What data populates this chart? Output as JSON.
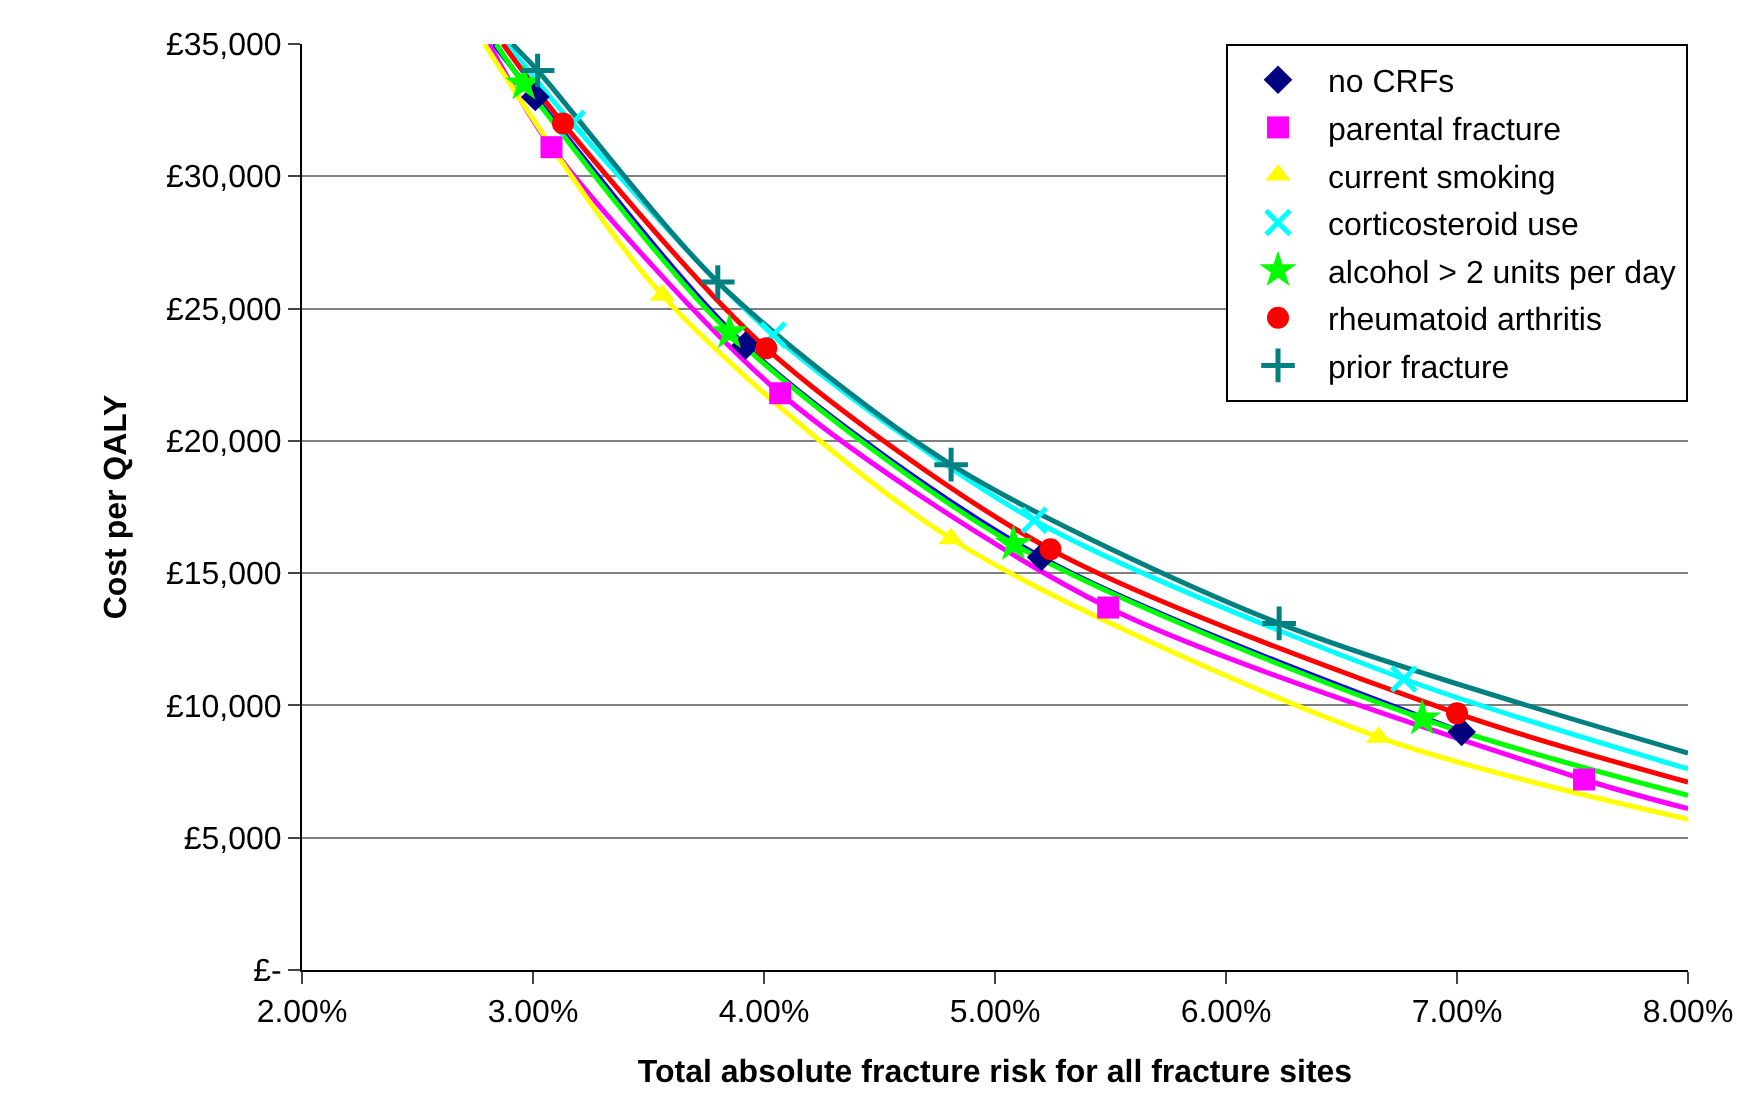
{
  "chart_data": {
    "type": "scatter",
    "xlabel": "Total absolute fracture risk for all fracture sites",
    "ylabel": "Cost per QALY",
    "xlim": [
      2,
      8
    ],
    "xticks": [
      {
        "value": 2,
        "label": "2.00%"
      },
      {
        "value": 3,
        "label": "3.00%"
      },
      {
        "value": 4,
        "label": "4.00%"
      },
      {
        "value": 5,
        "label": "5.00%"
      },
      {
        "value": 6,
        "label": "6.00%"
      },
      {
        "value": 7,
        "label": "7.00%"
      },
      {
        "value": 8,
        "label": "8.00%"
      }
    ],
    "ylim": [
      0,
      35000
    ],
    "yticks": [
      {
        "value": 0,
        "label": "£-"
      },
      {
        "value": 5000,
        "label": "£5,000"
      },
      {
        "value": 10000,
        "label": "£10,000"
      },
      {
        "value": 15000,
        "label": "£15,000"
      },
      {
        "value": 20000,
        "label": "£20,000"
      },
      {
        "value": 25000,
        "label": "£25,000"
      },
      {
        "value": 30000,
        "label": "£30,000"
      },
      {
        "value": 35000,
        "label": "£35,000"
      }
    ],
    "grid": "y",
    "legend": "top right",
    "series": [
      {
        "type": "line",
        "marker": "none",
        "color": "#0000ff",
        "x": [
          2.83,
          3.01,
          3.92,
          5.2,
          7.02
        ],
        "values": [
          35000,
          33000,
          23600,
          15600,
          9000
        ]
      },
      {
        "type": "line",
        "marker": "none",
        "color": "#ff00ff",
        "x": [
          2.81,
          3.08,
          4.07,
          5.49,
          7.55,
          8.0
        ],
        "values": [
          35000,
          31100,
          21800,
          13700,
          7200,
          6100
        ]
      },
      {
        "type": "line",
        "marker": "none",
        "color": "#ffff00",
        "x": [
          2.79,
          3.56,
          4.81,
          6.66,
          8.0
        ],
        "values": [
          35000,
          25500,
          16300,
          8800,
          5700
        ]
      },
      {
        "type": "line",
        "marker": "none",
        "color": "#00ffff",
        "x": [
          2.89,
          3.17,
          4.04,
          5.17,
          6.77,
          8.0
        ],
        "values": [
          35000,
          32000,
          24000,
          17000,
          11000,
          7600
        ]
      },
      {
        "type": "line",
        "marker": "none",
        "color": "#00ff00",
        "x": [
          2.84,
          2.96,
          3.85,
          5.08,
          6.85,
          8.0
        ],
        "values": [
          35000,
          33500,
          24100,
          16100,
          9500,
          6600
        ]
      },
      {
        "type": "line",
        "marker": "none",
        "color": "#ff0000",
        "x": [
          2.87,
          3.13,
          4.01,
          5.24,
          7.0,
          8.0
        ],
        "values": [
          35000,
          32000,
          23500,
          15900,
          9700,
          7100
        ]
      },
      {
        "type": "line",
        "marker": "none",
        "color": "#008080",
        "x": [
          2.91,
          3.02,
          3.8,
          4.81,
          6.23,
          8.0
        ],
        "values": [
          35000,
          34000,
          26000,
          19100,
          13100,
          8200
        ]
      },
      {
        "name": "no CRFs",
        "marker": "diamond",
        "color": "#000080",
        "x": [
          3.01,
          3.92,
          5.2,
          7.02
        ],
        "values": [
          33000,
          23600,
          15600,
          9000
        ]
      },
      {
        "name": "parental fracture",
        "marker": "square",
        "color": "#ff00ff",
        "x": [
          3.08,
          4.07,
          5.49,
          7.55
        ],
        "values": [
          31100,
          21800,
          13700,
          7200
        ]
      },
      {
        "name": "current smoking",
        "marker": "triangle",
        "color": "#ffff00",
        "x": [
          3.56,
          4.81,
          6.66
        ],
        "values": [
          25500,
          16300,
          8800
        ]
      },
      {
        "name": "corticosteroid use",
        "marker": "cross",
        "color": "#00ffff",
        "x": [
          3.17,
          4.04,
          5.17,
          6.77
        ],
        "values": [
          32000,
          24000,
          17000,
          11000
        ]
      },
      {
        "name": "alcohol > 2 units per day",
        "marker": "star",
        "color": "#00ff00",
        "x": [
          2.96,
          3.85,
          5.08,
          6.85
        ],
        "values": [
          33500,
          24100,
          16100,
          9500
        ]
      },
      {
        "name": "rheumatoid arthritis",
        "marker": "circle",
        "color": "#ff0000",
        "x": [
          3.13,
          4.01,
          5.24,
          7.0
        ],
        "values": [
          32000,
          23500,
          15900,
          9700
        ]
      },
      {
        "name": "prior fracture",
        "marker": "cross",
        "color": "#008080",
        "x": [
          3.02,
          3.8,
          4.81,
          6.23
        ],
        "values": [
          34000,
          26000,
          19100,
          13100
        ]
      }
    ]
  }
}
